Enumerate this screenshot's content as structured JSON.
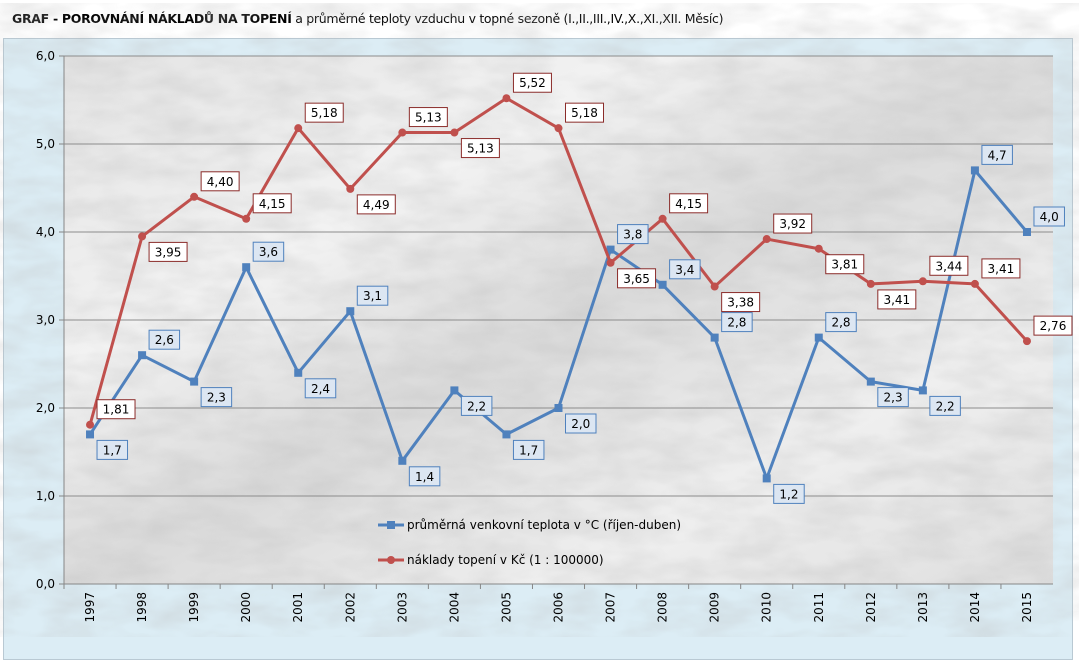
{
  "title_bold": "GRAF - POROVNÁNÍ NÁKLADŮ NA TOPENÍ",
  "title_rest": " a průměrné teploty vzduchu v topné sezoně (I.,II.,III.,IV.,X.,XI.,XII. Měsíc)",
  "chart_data": {
    "type": "line",
    "title": "GRAF - POROVNÁNÍ NÁKLADŮ NA TOPENÍ a průměrné teploty vzduchu v topné sezoně (I.,II.,III.,IV.,X.,XI.,XII. Měsíc)",
    "categories": [
      "1997",
      "1998",
      "1999",
      "2000",
      "2001",
      "2002",
      "2003",
      "2004",
      "2005",
      "2006",
      "2007",
      "2008",
      "2009",
      "2010",
      "2011",
      "2012",
      "2013",
      "2014",
      "2015"
    ],
    "ylim": [
      0,
      6
    ],
    "yticks": [
      "0,0",
      "1,0",
      "2,0",
      "3,0",
      "4,0",
      "5,0",
      "6,0"
    ],
    "grid": true,
    "legend_position": "bottom-center-inside",
    "series": [
      {
        "name": "průměrná venkovní teplota v °C (říjen-duben)",
        "color": "#4f81bd",
        "values": [
          1.7,
          2.6,
          2.3,
          3.6,
          2.4,
          3.1,
          1.4,
          2.2,
          1.7,
          2.0,
          3.8,
          3.4,
          2.8,
          1.2,
          2.8,
          2.3,
          2.2,
          4.7,
          4.0
        ],
        "labels": [
          "1,7",
          "2,6",
          "2,3",
          "3,6",
          "2,4",
          "3,1",
          "1,4",
          "2,2",
          "1,7",
          "2,0",
          "3,8",
          "3,4",
          "2,8",
          "1,2",
          "2,8",
          "2,3",
          "2,2",
          "4,7",
          "4,0"
        ]
      },
      {
        "name": "náklady topení v Kč (1 : 100000)",
        "color": "#c0504d",
        "values": [
          1.81,
          3.95,
          4.4,
          4.15,
          5.18,
          4.49,
          5.13,
          5.13,
          5.52,
          5.18,
          3.65,
          4.15,
          3.38,
          3.92,
          3.81,
          3.41,
          3.44,
          3.41,
          2.76
        ],
        "labels": [
          "1,81",
          "3,95",
          "4,40",
          "4,15",
          "5,18",
          "4,49",
          "5,13",
          "5,13",
          "5,52",
          "5,18",
          "3,65",
          "4,15",
          "3,38",
          "3,92",
          "3,81",
          "3,41",
          "3,44",
          "3,41",
          "2,76"
        ]
      }
    ]
  }
}
